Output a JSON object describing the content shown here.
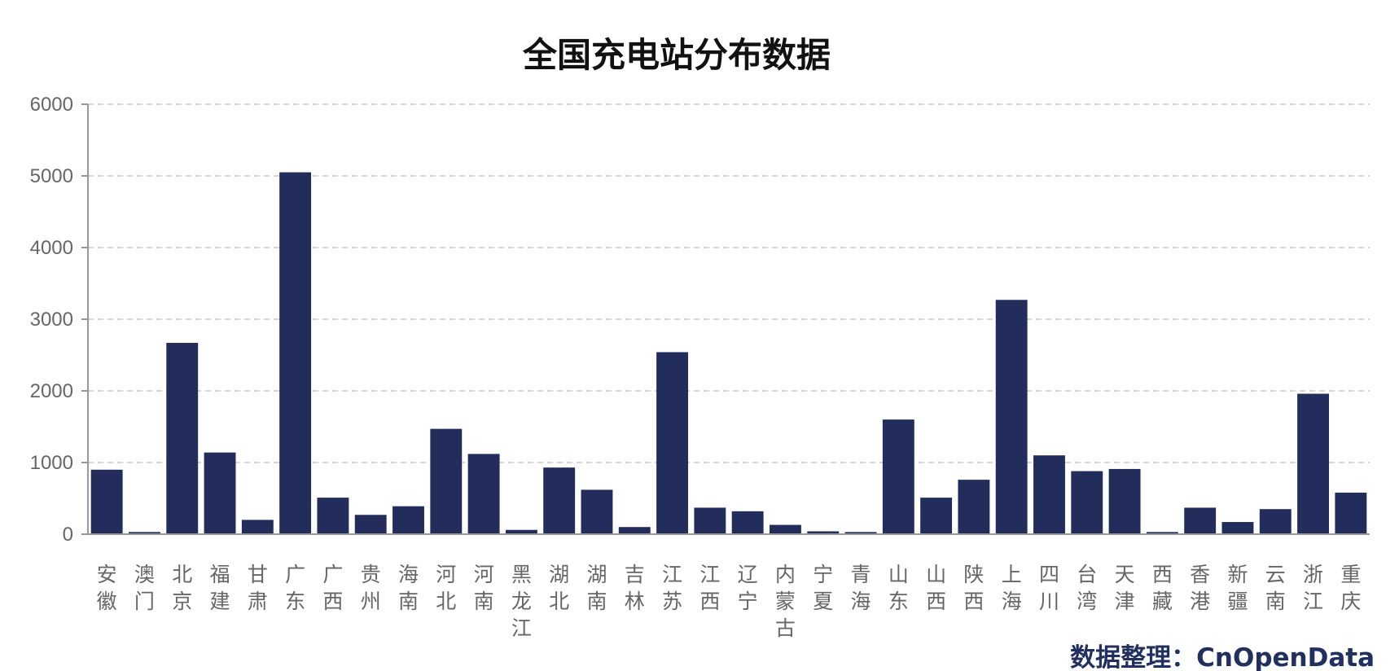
{
  "chart_data": {
    "type": "bar",
    "title": "全国充电站分布数据",
    "ylim": [
      0,
      6000
    ],
    "yticks": [
      0,
      1000,
      2000,
      3000,
      4000,
      5000,
      6000
    ],
    "grid": true,
    "bar_color": "#222d5c",
    "categories": [
      "安徽",
      "澳门",
      "北京",
      "福建",
      "甘肃",
      "广东",
      "广西",
      "贵州",
      "海南",
      "河北",
      "河南",
      "黑龙江",
      "湖北",
      "湖南",
      "吉林",
      "江苏",
      "江西",
      "辽宁",
      "内蒙古",
      "宁夏",
      "青海",
      "山东",
      "山西",
      "陕西",
      "上海",
      "四川",
      "台湾",
      "天津",
      "西藏",
      "香港",
      "新疆",
      "云南",
      "浙江",
      "重庆"
    ],
    "values": [
      900,
      30,
      2670,
      1140,
      200,
      5050,
      510,
      270,
      390,
      1470,
      1120,
      60,
      930,
      620,
      100,
      2540,
      370,
      320,
      130,
      40,
      30,
      1600,
      510,
      760,
      3270,
      1100,
      880,
      910,
      30,
      370,
      170,
      350,
      1960,
      580
    ],
    "source": "数据整理：CnOpenData"
  }
}
